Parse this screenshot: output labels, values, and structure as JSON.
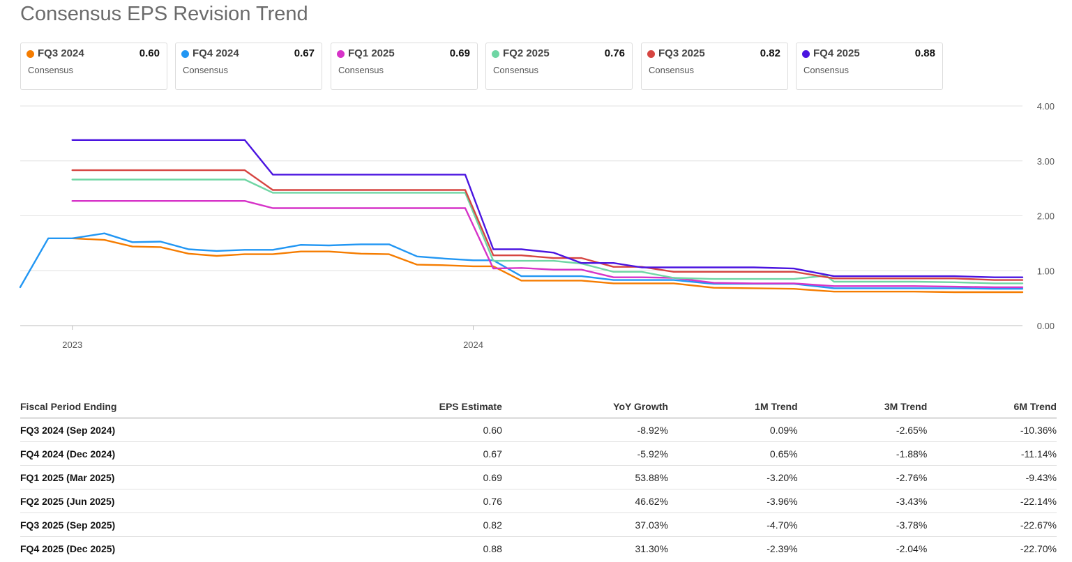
{
  "title": "Consensus EPS Revision Trend",
  "cards": [
    {
      "label": "FQ3 2024",
      "value": "0.60",
      "sub": "Consensus",
      "color": "#f57c00"
    },
    {
      "label": "FQ4 2024",
      "value": "0.67",
      "sub": "Consensus",
      "color": "#2196f3"
    },
    {
      "label": "FQ1 2025",
      "value": "0.69",
      "sub": "Consensus",
      "color": "#d633c8"
    },
    {
      "label": "FQ2 2025",
      "value": "0.76",
      "sub": "Consensus",
      "color": "#6fd6a4"
    },
    {
      "label": "FQ3 2025",
      "value": "0.82",
      "sub": "Consensus",
      "color": "#d64541"
    },
    {
      "label": "FQ4 2025",
      "value": "0.88",
      "sub": "Consensus",
      "color": "#4a14e0"
    }
  ],
  "chart_data": {
    "type": "line",
    "title": "Consensus EPS Revision Trend",
    "ylim": [
      0,
      4
    ],
    "yticks": [
      "4.00",
      "3.00",
      "2.00",
      "1.00",
      "0.00"
    ],
    "xticks": [
      "2023",
      "2024"
    ],
    "xrange": [
      2022.87,
      2025.37
    ],
    "grid": true,
    "series": [
      {
        "name": "FQ3 2024",
        "color": "#f57c00",
        "x": [
          2023.0,
          2023.08,
          2023.15,
          2023.22,
          2023.29,
          2023.36,
          2023.43,
          2023.5,
          2023.57,
          2023.64,
          2023.72,
          2023.79,
          2023.86,
          2023.93,
          2024.0,
          2024.05,
          2024.12,
          2024.2,
          2024.27,
          2024.35,
          2024.42,
          2024.5,
          2024.6,
          2024.7,
          2024.8,
          2024.9,
          2025.0,
          2025.1,
          2025.2,
          2025.3,
          2025.37
        ],
        "y": [
          1.59,
          1.56,
          1.44,
          1.43,
          1.31,
          1.27,
          1.3,
          1.3,
          1.35,
          1.35,
          1.31,
          1.3,
          1.11,
          1.1,
          1.08,
          1.08,
          0.82,
          0.82,
          0.82,
          0.77,
          0.77,
          0.77,
          0.69,
          0.68,
          0.67,
          0.62,
          0.62,
          0.62,
          0.61,
          0.61,
          0.61
        ]
      },
      {
        "name": "FQ4 2024",
        "color": "#2196f3",
        "x": [
          2022.87,
          2022.94,
          2023.0,
          2023.08,
          2023.15,
          2023.22,
          2023.29,
          2023.36,
          2023.43,
          2023.5,
          2023.57,
          2023.64,
          2023.72,
          2023.79,
          2023.86,
          2023.93,
          2024.0,
          2024.05,
          2024.12,
          2024.2,
          2024.27,
          2024.35,
          2024.42,
          2024.5,
          2024.6,
          2024.7,
          2024.8,
          2024.9,
          2025.0,
          2025.1,
          2025.2,
          2025.3,
          2025.37
        ],
        "y": [
          0.7,
          1.59,
          1.59,
          1.68,
          1.52,
          1.53,
          1.39,
          1.36,
          1.38,
          1.38,
          1.47,
          1.46,
          1.48,
          1.48,
          1.26,
          1.22,
          1.19,
          1.19,
          0.9,
          0.9,
          0.9,
          0.83,
          0.83,
          0.83,
          0.76,
          0.76,
          0.76,
          0.68,
          0.68,
          0.68,
          0.68,
          0.67,
          0.67
        ]
      },
      {
        "name": "FQ1 2025",
        "color": "#d633c8",
        "x": [
          2023.0,
          2023.43,
          2023.5,
          2023.98,
          2024.05,
          2024.12,
          2024.2,
          2024.27,
          2024.35,
          2024.42,
          2024.5,
          2024.6,
          2024.7,
          2024.8,
          2024.9,
          2025.0,
          2025.1,
          2025.2,
          2025.3,
          2025.37
        ],
        "y": [
          2.27,
          2.27,
          2.14,
          2.14,
          1.04,
          1.05,
          1.02,
          1.02,
          0.88,
          0.88,
          0.87,
          0.78,
          0.77,
          0.77,
          0.72,
          0.72,
          0.72,
          0.71,
          0.7,
          0.7
        ]
      },
      {
        "name": "FQ2 2025",
        "color": "#6fd6a4",
        "x": [
          2023.0,
          2023.43,
          2023.5,
          2023.98,
          2024.05,
          2024.12,
          2024.2,
          2024.27,
          2024.35,
          2024.42,
          2024.5,
          2024.6,
          2024.7,
          2024.8,
          2024.88,
          2024.9,
          2025.0,
          2025.1,
          2025.2,
          2025.3,
          2025.37
        ],
        "y": [
          2.66,
          2.66,
          2.42,
          2.42,
          1.18,
          1.18,
          1.18,
          1.13,
          0.98,
          0.98,
          0.87,
          0.85,
          0.85,
          0.85,
          0.91,
          0.8,
          0.8,
          0.8,
          0.79,
          0.77,
          0.77
        ]
      },
      {
        "name": "FQ3 2025",
        "color": "#d64541",
        "x": [
          2023.0,
          2023.43,
          2023.5,
          2023.98,
          2024.05,
          2024.12,
          2024.2,
          2024.27,
          2024.35,
          2024.42,
          2024.5,
          2024.6,
          2024.7,
          2024.8,
          2024.9,
          2025.0,
          2025.1,
          2025.2,
          2025.3,
          2025.37
        ],
        "y": [
          2.83,
          2.83,
          2.47,
          2.47,
          1.28,
          1.28,
          1.23,
          1.23,
          1.07,
          1.07,
          0.98,
          0.98,
          0.98,
          0.98,
          0.86,
          0.86,
          0.86,
          0.86,
          0.83,
          0.83
        ]
      },
      {
        "name": "FQ4 2025",
        "color": "#4a14e0",
        "x": [
          2023.0,
          2023.43,
          2023.5,
          2023.98,
          2024.05,
          2024.12,
          2024.2,
          2024.27,
          2024.35,
          2024.42,
          2024.5,
          2024.6,
          2024.7,
          2024.8,
          2024.9,
          2025.0,
          2025.1,
          2025.2,
          2025.3,
          2025.37
        ],
        "y": [
          3.38,
          3.38,
          2.75,
          2.75,
          1.39,
          1.39,
          1.33,
          1.14,
          1.14,
          1.06,
          1.06,
          1.06,
          1.06,
          1.04,
          0.9,
          0.9,
          0.9,
          0.9,
          0.88,
          0.88
        ]
      }
    ]
  },
  "table": {
    "headers": [
      "Fiscal Period Ending",
      "EPS Estimate",
      "YoY Growth",
      "1M Trend",
      "3M Trend",
      "6M Trend"
    ],
    "rows": [
      [
        "FQ3 2024 (Sep 2024)",
        "0.60",
        "-8.92%",
        "0.09%",
        "-2.65%",
        "-10.36%"
      ],
      [
        "FQ4 2024 (Dec 2024)",
        "0.67",
        "-5.92%",
        "0.65%",
        "-1.88%",
        "-11.14%"
      ],
      [
        "FQ1 2025 (Mar 2025)",
        "0.69",
        "53.88%",
        "-3.20%",
        "-2.76%",
        "-9.43%"
      ],
      [
        "FQ2 2025 (Jun 2025)",
        "0.76",
        "46.62%",
        "-3.96%",
        "-3.43%",
        "-22.14%"
      ],
      [
        "FQ3 2025 (Sep 2025)",
        "0.82",
        "37.03%",
        "-4.70%",
        "-3.78%",
        "-22.67%"
      ],
      [
        "FQ4 2025 (Dec 2025)",
        "0.88",
        "31.30%",
        "-2.39%",
        "-2.04%",
        "-22.70%"
      ]
    ]
  }
}
